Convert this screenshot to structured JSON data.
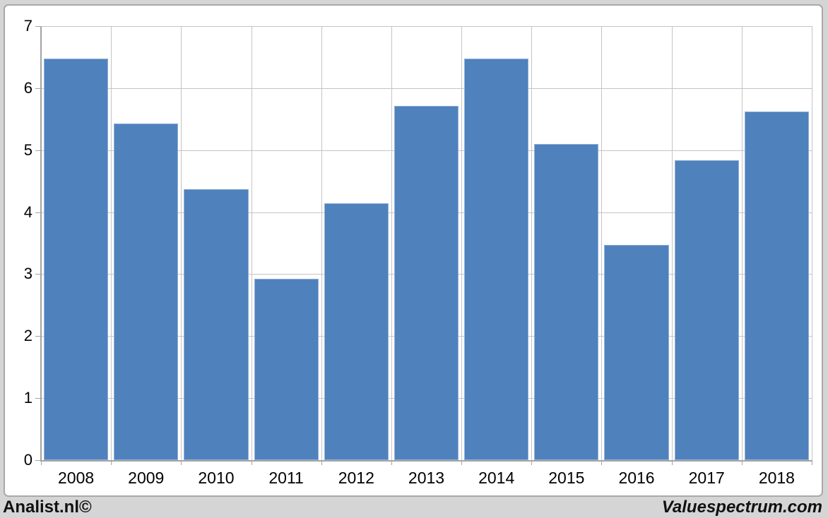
{
  "chart_data": {
    "type": "bar",
    "title": "",
    "xlabel": "",
    "ylabel": "",
    "categories": [
      "2008",
      "2009",
      "2010",
      "2011",
      "2012",
      "2013",
      "2014",
      "2015",
      "2016",
      "2017",
      "2018"
    ],
    "values": [
      6.48,
      5.43,
      4.37,
      2.93,
      4.14,
      5.71,
      6.48,
      5.1,
      3.47,
      4.84,
      5.62
    ],
    "ylim": [
      0,
      7
    ],
    "yticks": [
      0,
      1,
      2,
      3,
      4,
      5,
      6,
      7
    ],
    "grid": true,
    "vertical_grid": true,
    "legend": "none",
    "style": {
      "bar_fill": "#4f81bd",
      "bar_border": "#93b1d6",
      "gridline": "#c4c4c4",
      "axis": "#a3a3a3",
      "panel_border": "#a9a9a9",
      "page_bg": "#d5d5d5",
      "text": "#000000"
    }
  },
  "footer": {
    "left_text": "Analist.nl©",
    "right_text": "Valuespectrum.com"
  }
}
